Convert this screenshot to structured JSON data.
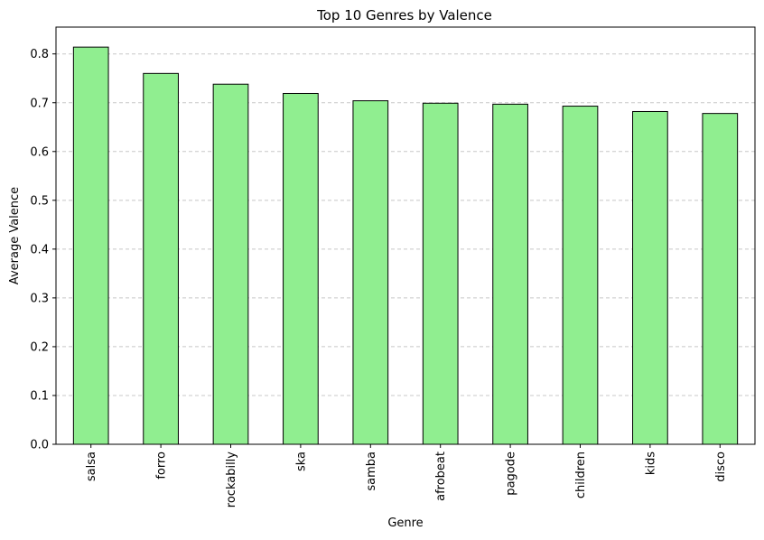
{
  "chart_data": {
    "type": "bar",
    "title": "Top 10 Genres by Valence",
    "xlabel": "Genre",
    "ylabel": "Average Valence",
    "categories": [
      "salsa",
      "forro",
      "rockabilly",
      "ska",
      "samba",
      "afrobeat",
      "pagode",
      "children",
      "kids",
      "disco"
    ],
    "values": [
      0.814,
      0.76,
      0.738,
      0.719,
      0.704,
      0.699,
      0.697,
      0.693,
      0.682,
      0.678
    ],
    "ylim": [
      0,
      0.855
    ],
    "yticks": [
      "0.0",
      "0.1",
      "0.2",
      "0.3",
      "0.4",
      "0.5",
      "0.6",
      "0.7",
      "0.8"
    ],
    "grid": "y-dashed",
    "legend": "none",
    "colors": {
      "bar_fill": "#90ee90",
      "bar_edge": "#000000",
      "grid": "#c8c8c8"
    }
  }
}
